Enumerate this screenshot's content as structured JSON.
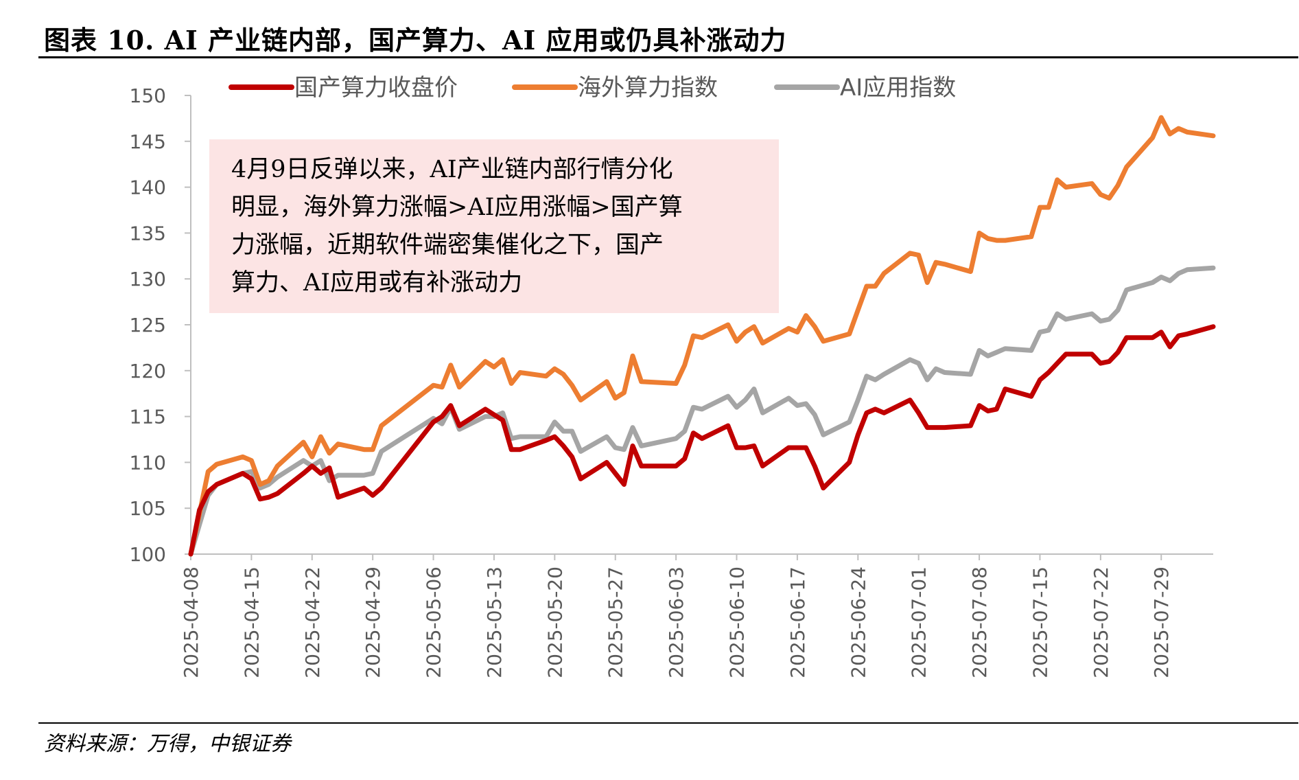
{
  "title": "图表 10. AI 产业链内部，国产算力、AI 应用或仍具补涨动力",
  "source": "资料来源：万得，中银证券",
  "chart_data": {
    "type": "line",
    "ylim": [
      100,
      150
    ],
    "yticks": [
      100,
      105,
      110,
      115,
      120,
      125,
      130,
      135,
      140,
      145,
      150
    ],
    "x_start": "2025-04-08",
    "x_end": "2025-08-04",
    "xticks": [
      "2025-04-08",
      "2025-04-15",
      "2025-04-22",
      "2025-04-29",
      "2025-05-06",
      "2025-05-13",
      "2025-05-20",
      "2025-05-27",
      "2025-06-03",
      "2025-06-10",
      "2025-06-17",
      "2025-06-24",
      "2025-07-01",
      "2025-07-08",
      "2025-07-15",
      "2025-07-22",
      "2025-07-29"
    ],
    "legend_position": "top",
    "grid": false,
    "annotation": [
      "4月9日反弹以来，AI产业链内部行情分化",
      "明显，海外算力涨幅>AI应用涨幅>国产算",
      "力涨幅，近期软件端密集催化之下，国产",
      "算力、AI应用或有补涨动力"
    ],
    "series": [
      {
        "name": "国产算力收盘价",
        "color": "#C00000",
        "points": [
          [
            "2025-04-08",
            100.0
          ],
          [
            "2025-04-09",
            104.8
          ],
          [
            "2025-04-10",
            106.8
          ],
          [
            "2025-04-11",
            107.6
          ],
          [
            "2025-04-14",
            108.8
          ],
          [
            "2025-04-15",
            108.2
          ],
          [
            "2025-04-16",
            106.0
          ],
          [
            "2025-04-17",
            106.2
          ],
          [
            "2025-04-18",
            106.6
          ],
          [
            "2025-04-21",
            108.8
          ],
          [
            "2025-04-22",
            109.6
          ],
          [
            "2025-04-23",
            108.8
          ],
          [
            "2025-04-24",
            109.4
          ],
          [
            "2025-04-25",
            106.2
          ],
          [
            "2025-04-28",
            107.2
          ],
          [
            "2025-04-29",
            106.4
          ],
          [
            "2025-04-30",
            107.2
          ],
          [
            "2025-05-06",
            114.4
          ],
          [
            "2025-05-07",
            115.0
          ],
          [
            "2025-05-08",
            116.2
          ],
          [
            "2025-05-09",
            114.0
          ],
          [
            "2025-05-12",
            115.8
          ],
          [
            "2025-05-13",
            115.2
          ],
          [
            "2025-05-14",
            114.6
          ],
          [
            "2025-05-15",
            111.4
          ],
          [
            "2025-05-16",
            111.4
          ],
          [
            "2025-05-19",
            112.4
          ],
          [
            "2025-05-20",
            112.8
          ],
          [
            "2025-05-21",
            111.8
          ],
          [
            "2025-05-22",
            110.6
          ],
          [
            "2025-05-23",
            108.2
          ],
          [
            "2025-05-26",
            110.0
          ],
          [
            "2025-05-27",
            108.8
          ],
          [
            "2025-05-28",
            107.6
          ],
          [
            "2025-05-29",
            111.8
          ],
          [
            "2025-05-30",
            109.6
          ],
          [
            "2025-06-03",
            109.6
          ],
          [
            "2025-06-04",
            110.4
          ],
          [
            "2025-06-05",
            113.2
          ],
          [
            "2025-06-06",
            112.6
          ],
          [
            "2025-06-09",
            114.0
          ],
          [
            "2025-06-10",
            111.6
          ],
          [
            "2025-06-11",
            111.6
          ],
          [
            "2025-06-12",
            111.8
          ],
          [
            "2025-06-13",
            109.6
          ],
          [
            "2025-06-16",
            111.6
          ],
          [
            "2025-06-17",
            111.6
          ],
          [
            "2025-06-18",
            111.6
          ],
          [
            "2025-06-19",
            109.6
          ],
          [
            "2025-06-20",
            107.2
          ],
          [
            "2025-06-23",
            110.0
          ],
          [
            "2025-06-24",
            113.0
          ],
          [
            "2025-06-25",
            115.4
          ],
          [
            "2025-06-26",
            115.8
          ],
          [
            "2025-06-27",
            115.4
          ],
          [
            "2025-06-30",
            116.8
          ],
          [
            "2025-07-01",
            115.4
          ],
          [
            "2025-07-02",
            113.8
          ],
          [
            "2025-07-03",
            113.8
          ],
          [
            "2025-07-04",
            113.8
          ],
          [
            "2025-07-07",
            114.0
          ],
          [
            "2025-07-08",
            116.2
          ],
          [
            "2025-07-09",
            115.6
          ],
          [
            "2025-07-10",
            115.8
          ],
          [
            "2025-07-11",
            118.0
          ],
          [
            "2025-07-14",
            117.2
          ],
          [
            "2025-07-15",
            119.0
          ],
          [
            "2025-07-16",
            119.8
          ],
          [
            "2025-07-17",
            120.8
          ],
          [
            "2025-07-18",
            121.8
          ],
          [
            "2025-07-21",
            121.8
          ],
          [
            "2025-07-22",
            120.8
          ],
          [
            "2025-07-23",
            121.0
          ],
          [
            "2025-07-24",
            122.0
          ],
          [
            "2025-07-25",
            123.6
          ],
          [
            "2025-07-28",
            123.6
          ],
          [
            "2025-07-29",
            124.2
          ],
          [
            "2025-07-30",
            122.6
          ],
          [
            "2025-07-31",
            123.8
          ],
          [
            "2025-08-01",
            124.0
          ],
          [
            "2025-08-04",
            124.8
          ]
        ]
      },
      {
        "name": "海外算力指数",
        "color": "#ED7D31",
        "points": [
          [
            "2025-04-08",
            100.0
          ],
          [
            "2025-04-09",
            104.4
          ],
          [
            "2025-04-10",
            109.0
          ],
          [
            "2025-04-11",
            109.8
          ],
          [
            "2025-04-14",
            110.6
          ],
          [
            "2025-04-15",
            110.2
          ],
          [
            "2025-04-16",
            107.6
          ],
          [
            "2025-04-17",
            108.0
          ],
          [
            "2025-04-18",
            109.6
          ],
          [
            "2025-04-21",
            112.2
          ],
          [
            "2025-04-22",
            110.6
          ],
          [
            "2025-04-23",
            112.8
          ],
          [
            "2025-04-24",
            111.0
          ],
          [
            "2025-04-25",
            112.0
          ],
          [
            "2025-04-28",
            111.4
          ],
          [
            "2025-04-29",
            111.4
          ],
          [
            "2025-04-30",
            114.0
          ],
          [
            "2025-05-06",
            118.4
          ],
          [
            "2025-05-07",
            118.2
          ],
          [
            "2025-05-08",
            120.6
          ],
          [
            "2025-05-09",
            118.2
          ],
          [
            "2025-05-12",
            121.0
          ],
          [
            "2025-05-13",
            120.4
          ],
          [
            "2025-05-14",
            121.2
          ],
          [
            "2025-05-15",
            118.6
          ],
          [
            "2025-05-16",
            119.8
          ],
          [
            "2025-05-19",
            119.4
          ],
          [
            "2025-05-20",
            120.2
          ],
          [
            "2025-05-21",
            119.6
          ],
          [
            "2025-05-22",
            118.4
          ],
          [
            "2025-05-23",
            116.8
          ],
          [
            "2025-05-26",
            118.8
          ],
          [
            "2025-05-27",
            117.0
          ],
          [
            "2025-05-28",
            117.6
          ],
          [
            "2025-05-29",
            121.6
          ],
          [
            "2025-05-30",
            118.8
          ],
          [
            "2025-06-03",
            118.6
          ],
          [
            "2025-06-04",
            120.6
          ],
          [
            "2025-06-05",
            123.8
          ],
          [
            "2025-06-06",
            123.6
          ],
          [
            "2025-06-09",
            125.0
          ],
          [
            "2025-06-10",
            123.2
          ],
          [
            "2025-06-11",
            124.2
          ],
          [
            "2025-06-12",
            124.8
          ],
          [
            "2025-06-13",
            123.0
          ],
          [
            "2025-06-16",
            124.6
          ],
          [
            "2025-06-17",
            124.2
          ],
          [
            "2025-06-18",
            126.0
          ],
          [
            "2025-06-19",
            124.8
          ],
          [
            "2025-06-20",
            123.2
          ],
          [
            "2025-06-23",
            124.0
          ],
          [
            "2025-06-24",
            126.6
          ],
          [
            "2025-06-25",
            129.2
          ],
          [
            "2025-06-26",
            129.2
          ],
          [
            "2025-06-27",
            130.6
          ],
          [
            "2025-06-30",
            132.8
          ],
          [
            "2025-07-01",
            132.6
          ],
          [
            "2025-07-02",
            129.6
          ],
          [
            "2025-07-03",
            131.8
          ],
          [
            "2025-07-04",
            131.6
          ],
          [
            "2025-07-07",
            130.8
          ],
          [
            "2025-07-08",
            135.0
          ],
          [
            "2025-07-09",
            134.4
          ],
          [
            "2025-07-10",
            134.2
          ],
          [
            "2025-07-11",
            134.2
          ],
          [
            "2025-07-14",
            134.6
          ],
          [
            "2025-07-15",
            137.8
          ],
          [
            "2025-07-16",
            137.8
          ],
          [
            "2025-07-17",
            140.8
          ],
          [
            "2025-07-18",
            140.0
          ],
          [
            "2025-07-21",
            140.4
          ],
          [
            "2025-07-22",
            139.2
          ],
          [
            "2025-07-23",
            138.8
          ],
          [
            "2025-07-24",
            140.2
          ],
          [
            "2025-07-25",
            142.2
          ],
          [
            "2025-07-28",
            145.4
          ],
          [
            "2025-07-29",
            147.6
          ],
          [
            "2025-07-30",
            145.8
          ],
          [
            "2025-07-31",
            146.4
          ],
          [
            "2025-08-01",
            146.0
          ],
          [
            "2025-08-04",
            145.6
          ]
        ]
      },
      {
        "name": "AI应用指数",
        "color": "#A5A5A5",
        "points": [
          [
            "2025-04-08",
            100.0
          ],
          [
            "2025-04-09",
            103.2
          ],
          [
            "2025-04-10",
            106.4
          ],
          [
            "2025-04-11",
            107.6
          ],
          [
            "2025-04-14",
            108.8
          ],
          [
            "2025-04-15",
            109.0
          ],
          [
            "2025-04-16",
            107.2
          ],
          [
            "2025-04-17",
            107.6
          ],
          [
            "2025-04-18",
            108.4
          ],
          [
            "2025-04-21",
            110.2
          ],
          [
            "2025-04-22",
            109.6
          ],
          [
            "2025-04-23",
            110.2
          ],
          [
            "2025-04-24",
            108.0
          ],
          [
            "2025-04-25",
            108.6
          ],
          [
            "2025-04-28",
            108.6
          ],
          [
            "2025-04-29",
            108.8
          ],
          [
            "2025-04-30",
            111.2
          ],
          [
            "2025-05-06",
            114.8
          ],
          [
            "2025-05-07",
            114.2
          ],
          [
            "2025-05-08",
            116.0
          ],
          [
            "2025-05-09",
            113.6
          ],
          [
            "2025-05-12",
            115.0
          ],
          [
            "2025-05-13",
            115.0
          ],
          [
            "2025-05-14",
            115.4
          ],
          [
            "2025-05-15",
            112.6
          ],
          [
            "2025-05-16",
            112.8
          ],
          [
            "2025-05-19",
            112.8
          ],
          [
            "2025-05-20",
            114.4
          ],
          [
            "2025-05-21",
            113.4
          ],
          [
            "2025-05-22",
            113.4
          ],
          [
            "2025-05-23",
            111.2
          ],
          [
            "2025-05-26",
            112.8
          ],
          [
            "2025-05-27",
            111.6
          ],
          [
            "2025-05-28",
            111.4
          ],
          [
            "2025-05-29",
            113.8
          ],
          [
            "2025-05-30",
            111.8
          ],
          [
            "2025-06-03",
            112.6
          ],
          [
            "2025-06-04",
            113.4
          ],
          [
            "2025-06-05",
            116.0
          ],
          [
            "2025-06-06",
            115.8
          ],
          [
            "2025-06-09",
            117.2
          ],
          [
            "2025-06-10",
            116.0
          ],
          [
            "2025-06-11",
            116.8
          ],
          [
            "2025-06-12",
            118.0
          ],
          [
            "2025-06-13",
            115.4
          ],
          [
            "2025-06-16",
            117.0
          ],
          [
            "2025-06-17",
            116.2
          ],
          [
            "2025-06-18",
            116.4
          ],
          [
            "2025-06-19",
            115.2
          ],
          [
            "2025-06-20",
            113.0
          ],
          [
            "2025-06-23",
            114.4
          ],
          [
            "2025-06-24",
            116.8
          ],
          [
            "2025-06-25",
            119.4
          ],
          [
            "2025-06-26",
            119.0
          ],
          [
            "2025-06-27",
            119.6
          ],
          [
            "2025-06-30",
            121.2
          ],
          [
            "2025-07-01",
            120.8
          ],
          [
            "2025-07-02",
            119.0
          ],
          [
            "2025-07-03",
            120.2
          ],
          [
            "2025-07-04",
            119.8
          ],
          [
            "2025-07-07",
            119.6
          ],
          [
            "2025-07-08",
            122.2
          ],
          [
            "2025-07-09",
            121.6
          ],
          [
            "2025-07-10",
            122.0
          ],
          [
            "2025-07-11",
            122.4
          ],
          [
            "2025-07-14",
            122.2
          ],
          [
            "2025-07-15",
            124.2
          ],
          [
            "2025-07-16",
            124.4
          ],
          [
            "2025-07-17",
            126.2
          ],
          [
            "2025-07-18",
            125.6
          ],
          [
            "2025-07-21",
            126.2
          ],
          [
            "2025-07-22",
            125.4
          ],
          [
            "2025-07-23",
            125.6
          ],
          [
            "2025-07-24",
            126.6
          ],
          [
            "2025-07-25",
            128.8
          ],
          [
            "2025-07-28",
            129.6
          ],
          [
            "2025-07-29",
            130.2
          ],
          [
            "2025-07-30",
            129.8
          ],
          [
            "2025-07-31",
            130.6
          ],
          [
            "2025-08-01",
            131.0
          ],
          [
            "2025-08-04",
            131.2
          ]
        ]
      }
    ]
  }
}
